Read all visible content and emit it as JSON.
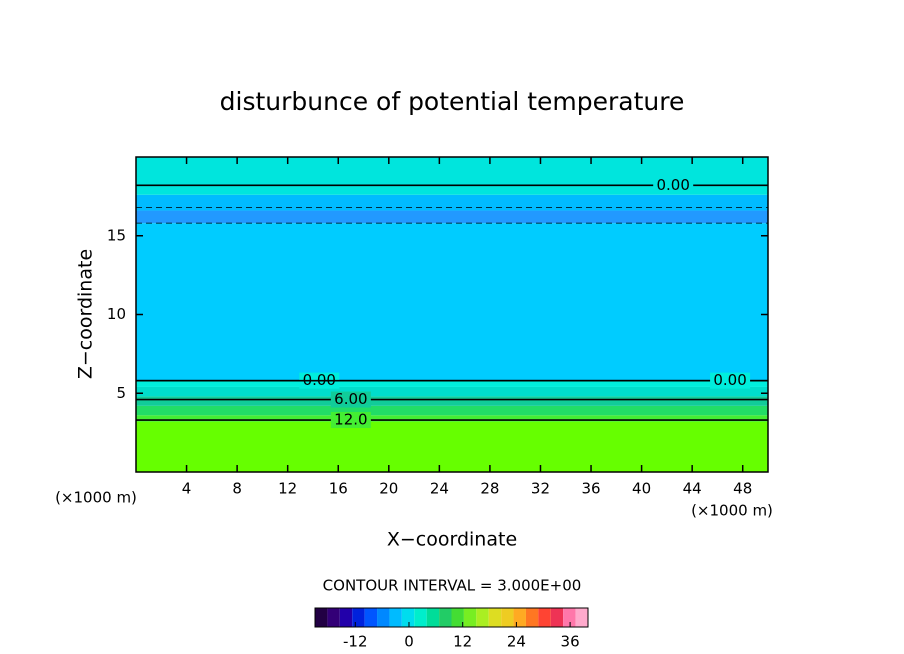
{
  "chart_data": {
    "type": "contour",
    "title": "disturbunce of potential temperature",
    "x_label": "X−coordinate",
    "y_label": "Z−coordinate",
    "x_unit": "(×1000 m)",
    "y_unit": "(×1000 m)",
    "xlim": [
      0,
      50
    ],
    "ylim": [
      0,
      20
    ],
    "xticks": [
      4,
      8,
      12,
      16,
      20,
      24,
      28,
      32,
      36,
      40,
      44,
      48
    ],
    "yticks": [
      5,
      10,
      15
    ],
    "layers": [
      {
        "z": [
          0,
          3.2
        ],
        "value": 15,
        "color": "#66ff00"
      },
      {
        "z": [
          3.2,
          3.6
        ],
        "value": 12,
        "color": "#44ee33"
      },
      {
        "z": [
          3.6,
          4.2
        ],
        "value": 9,
        "color": "#22dd66"
      },
      {
        "z": [
          4.2,
          4.8
        ],
        "value": 6,
        "color": "#11cc99"
      },
      {
        "z": [
          4.8,
          5.4
        ],
        "value": 3,
        "color": "#00ddcc"
      },
      {
        "z": [
          5.4,
          5.8
        ],
        "value": 1,
        "color": "#00eedd"
      },
      {
        "z": [
          5.8,
          15.8
        ],
        "value": -1,
        "color": "#00ccff"
      },
      {
        "z": [
          15.8,
          16.6
        ],
        "value": -4,
        "color": "#2299ff"
      },
      {
        "z": [
          16.6,
          17.6
        ],
        "value": -2,
        "color": "#00bbff"
      },
      {
        "z": [
          17.6,
          20
        ],
        "value": 0,
        "color": "#00e5dd"
      }
    ],
    "contours": [
      {
        "value": 12,
        "z": 3.3,
        "label": "12.0",
        "label_x": 17,
        "style": "solid"
      },
      {
        "value": 6,
        "z": 4.6,
        "label": "6.00",
        "label_x": 17,
        "style": "solid"
      },
      {
        "value": 0,
        "z": 5.8,
        "label": "0.00",
        "label_x": 14.5,
        "style": "solid"
      },
      {
        "value": 0,
        "z": 5.8,
        "label": "0.00",
        "label_x": 47,
        "style": "solid"
      },
      {
        "value": -3,
        "z": 15.8,
        "style": "dashed"
      },
      {
        "value": -3,
        "z": 16.8,
        "style": "dashed"
      },
      {
        "value": 0,
        "z": 18.2,
        "label": "0.00",
        "label_x": 42.5,
        "style": "solid"
      }
    ],
    "interval_text": "CONTOUR INTERVAL = 3.000E+00",
    "colorbar": {
      "lim": [
        -21,
        40
      ],
      "ticks": [
        -12,
        0,
        12,
        24,
        36
      ],
      "colors": [
        "#220044",
        "#330077",
        "#2200aa",
        "#0022dd",
        "#0055ff",
        "#0088ff",
        "#00bbff",
        "#00ddee",
        "#00eecc",
        "#00dd99",
        "#22cc66",
        "#44dd33",
        "#77ee22",
        "#aaee22",
        "#dddd22",
        "#eecc22",
        "#ffaa22",
        "#ff7722",
        "#ff4433",
        "#ee3355",
        "#ff77aa",
        "#ffaacc"
      ]
    }
  }
}
